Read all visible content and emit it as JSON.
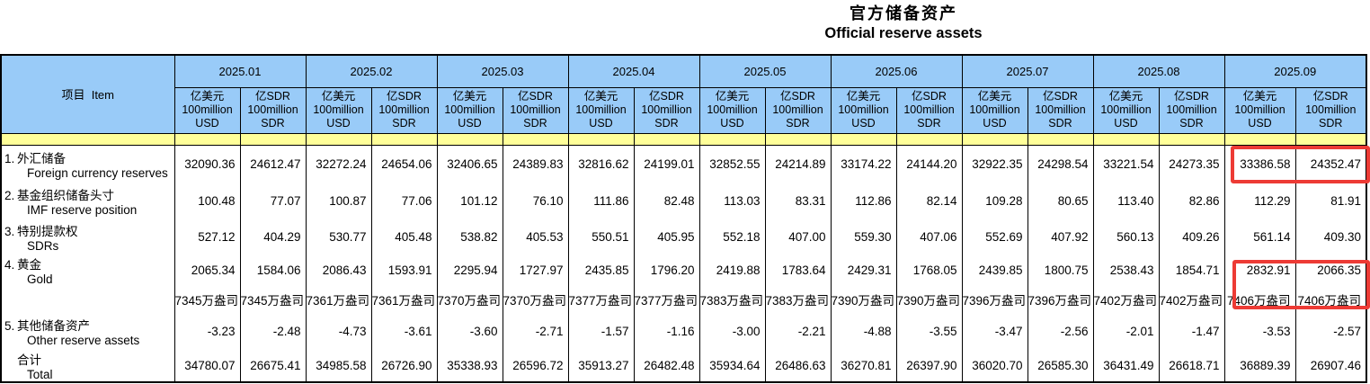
{
  "title": {
    "zh": "官方储备资产",
    "en": "Official reserve assets"
  },
  "table": {
    "item_header": "项目  Item",
    "months": [
      "2025.01",
      "2025.02",
      "2025.03",
      "2025.04",
      "2025.05",
      "2025.06",
      "2025.07",
      "2025.08",
      "2025.09"
    ],
    "unit_usd": {
      "l1": "亿美元",
      "l2": "100million",
      "l3": "USD"
    },
    "unit_sdr": {
      "l1": "亿SDR",
      "l2": "100million",
      "l3": "SDR"
    },
    "rows": [
      {
        "no": "1.",
        "zh": "外汇储备",
        "en": "Foreign currency reserves",
        "values": [
          "32090.36",
          "24612.47",
          "32272.24",
          "24654.06",
          "32406.65",
          "24389.83",
          "32816.62",
          "24199.01",
          "32852.55",
          "24214.89",
          "33174.22",
          "24144.20",
          "32922.35",
          "24298.54",
          "33221.54",
          "24273.35",
          "33386.58",
          "24352.47"
        ]
      },
      {
        "no": "2.",
        "zh": "基金组织储备头寸",
        "en": "IMF reserve position",
        "values": [
          "100.48",
          "77.07",
          "100.87",
          "77.06",
          "101.12",
          "76.10",
          "111.86",
          "82.48",
          "113.03",
          "83.31",
          "112.86",
          "82.14",
          "109.28",
          "80.65",
          "113.40",
          "82.86",
          "112.29",
          "81.91"
        ]
      },
      {
        "no": "3.",
        "zh": "特别提款权",
        "en": "SDRs",
        "values": [
          "527.12",
          "404.29",
          "530.77",
          "405.48",
          "538.82",
          "405.53",
          "550.51",
          "405.95",
          "552.18",
          "407.00",
          "559.30",
          "407.06",
          "552.69",
          "407.92",
          "560.13",
          "409.26",
          "561.14",
          "409.30"
        ]
      },
      {
        "no": "4.",
        "zh": "黄金",
        "en": "Gold",
        "values": [
          "2065.34",
          "1584.06",
          "2086.43",
          "1593.91",
          "2295.94",
          "1727.97",
          "2435.85",
          "1796.20",
          "2419.88",
          "1783.64",
          "2429.31",
          "1768.05",
          "2439.85",
          "1800.75",
          "2538.43",
          "1854.71",
          "2832.91",
          "2066.35"
        ]
      },
      {
        "no": "",
        "zh": "",
        "en": "",
        "values": [
          "7345万盎司",
          "7345万盎司",
          "7361万盎司",
          "7361万盎司",
          "7370万盎司",
          "7370万盎司",
          "7377万盎司",
          "7377万盎司",
          "7383万盎司",
          "7383万盎司",
          "7390万盎司",
          "7390万盎司",
          "7396万盎司",
          "7396万盎司",
          "7402万盎司",
          "7402万盎司",
          "7406万盎司",
          "7406万盎司"
        ]
      },
      {
        "no": "5.",
        "zh": "其他储备资产",
        "en": "Other reserve assets",
        "values": [
          "-3.23",
          "-2.48",
          "-4.73",
          "-3.61",
          "-3.60",
          "-2.71",
          "-1.57",
          "-1.16",
          "-3.00",
          "-2.21",
          "-4.88",
          "-3.55",
          "-3.47",
          "-2.56",
          "-2.01",
          "-1.47",
          "-3.53",
          "-2.57"
        ]
      },
      {
        "no": "",
        "zh": "合计",
        "en": "Total",
        "values": [
          "34780.07",
          "26675.41",
          "34985.58",
          "26726.90",
          "35338.93",
          "26596.72",
          "35913.27",
          "26482.48",
          "35934.64",
          "26486.63",
          "36270.81",
          "26397.90",
          "36020.70",
          "26585.30",
          "36431.49",
          "26618.71",
          "36889.39",
          "26907.46"
        ]
      }
    ]
  },
  "colors": {
    "header_blue": "#99CBF8",
    "band_yellow": "#FFFF99",
    "highlight_red": "#ED3B35"
  },
  "highlights": [
    {
      "target": "2025.09 外汇储备 Foreign currency reserves values"
    },
    {
      "target": "2025.09 黄金 Gold values"
    }
  ]
}
